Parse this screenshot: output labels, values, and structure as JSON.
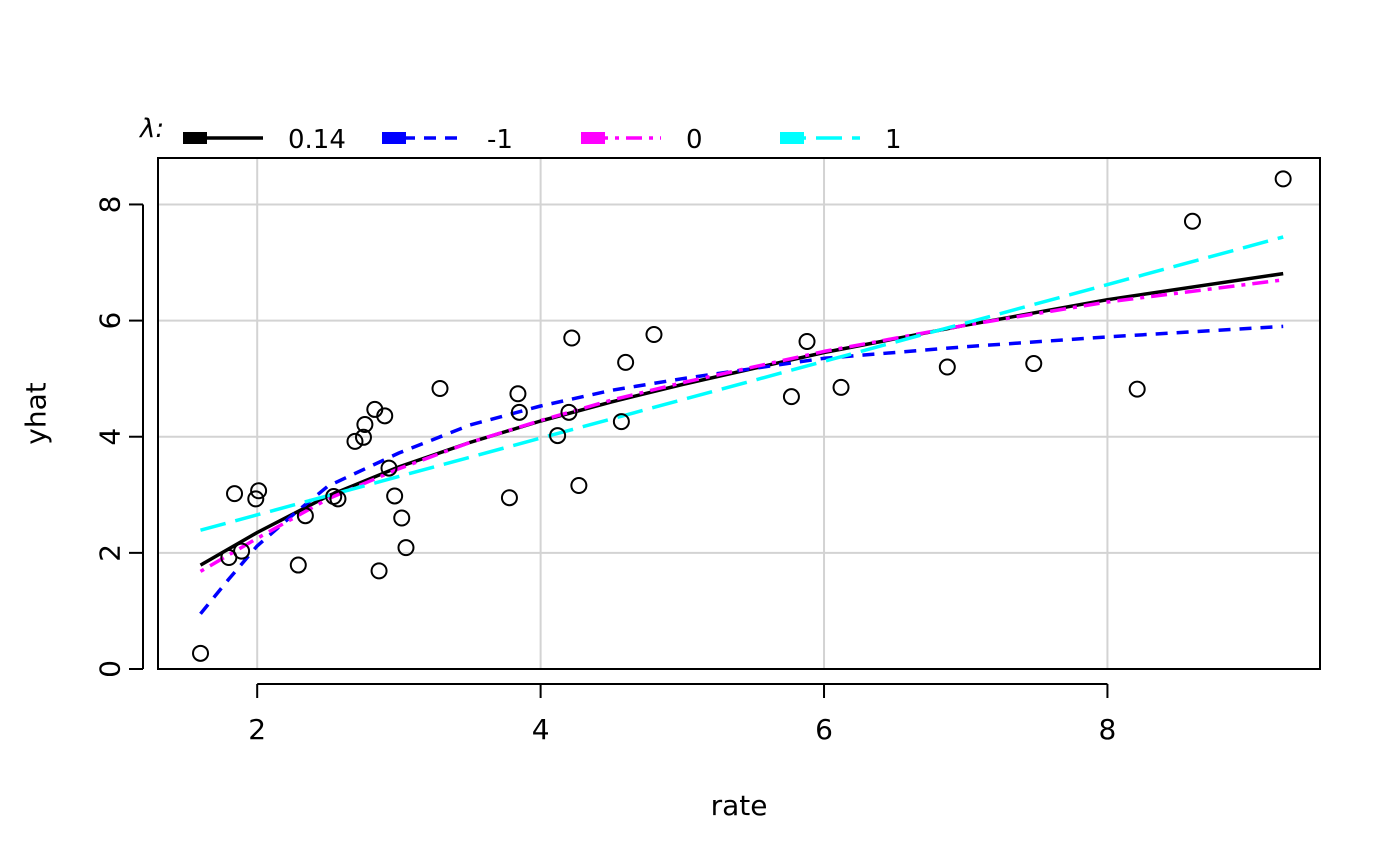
{
  "chart_data": {
    "type": "scatter",
    "title": "",
    "xlabel": "rate",
    "ylabel": "yhat",
    "xlim": [
      1.3,
      9.5
    ],
    "ylim": [
      0,
      8.8
    ],
    "x_ticks": [
      "2",
      "4",
      "6",
      "8"
    ],
    "y_ticks": [
      "0",
      "2",
      "4",
      "6",
      "8"
    ],
    "grid": true,
    "legend": {
      "title": "λ:",
      "placement": "top",
      "entries": [
        "0.14",
        "-1",
        "0",
        "1"
      ]
    },
    "points": [
      {
        "x": 1.6,
        "y": 0.27
      },
      {
        "x": 1.8,
        "y": 1.92
      },
      {
        "x": 1.84,
        "y": 3.02
      },
      {
        "x": 1.89,
        "y": 2.03
      },
      {
        "x": 1.99,
        "y": 2.93
      },
      {
        "x": 2.01,
        "y": 3.07
      },
      {
        "x": 2.29,
        "y": 1.79
      },
      {
        "x": 2.34,
        "y": 2.64
      },
      {
        "x": 2.54,
        "y": 2.97
      },
      {
        "x": 2.57,
        "y": 2.93
      },
      {
        "x": 2.69,
        "y": 3.92
      },
      {
        "x": 2.75,
        "y": 3.99
      },
      {
        "x": 2.76,
        "y": 4.21
      },
      {
        "x": 2.83,
        "y": 4.47
      },
      {
        "x": 2.86,
        "y": 1.69
      },
      {
        "x": 2.9,
        "y": 4.36
      },
      {
        "x": 2.93,
        "y": 3.46
      },
      {
        "x": 2.97,
        "y": 2.98
      },
      {
        "x": 3.02,
        "y": 2.6
      },
      {
        "x": 3.05,
        "y": 2.09
      },
      {
        "x": 3.29,
        "y": 4.83
      },
      {
        "x": 3.78,
        "y": 2.95
      },
      {
        "x": 3.84,
        "y": 4.74
      },
      {
        "x": 3.85,
        "y": 4.42
      },
      {
        "x": 4.12,
        "y": 4.02
      },
      {
        "x": 4.2,
        "y": 4.42
      },
      {
        "x": 4.22,
        "y": 5.7
      },
      {
        "x": 4.27,
        "y": 3.16
      },
      {
        "x": 4.57,
        "y": 4.26
      },
      {
        "x": 4.6,
        "y": 5.28
      },
      {
        "x": 4.8,
        "y": 5.76
      },
      {
        "x": 5.77,
        "y": 4.69
      },
      {
        "x": 5.88,
        "y": 5.64
      },
      {
        "x": 6.12,
        "y": 4.85
      },
      {
        "x": 6.87,
        "y": 5.2
      },
      {
        "x": 7.48,
        "y": 5.26
      },
      {
        "x": 8.21,
        "y": 4.82
      },
      {
        "x": 8.6,
        "y": 7.71
      },
      {
        "x": 9.24,
        "y": 8.44
      }
    ],
    "series": [
      {
        "name": "0.14",
        "color": "#000000",
        "dash": "solid",
        "x": [
          1.6,
          2.0,
          2.5,
          3.0,
          3.5,
          4.0,
          4.5,
          5.0,
          6.0,
          7.0,
          8.0,
          9.24
        ],
        "y": [
          1.79,
          2.35,
          2.98,
          3.48,
          3.9,
          4.27,
          4.6,
          4.9,
          5.45,
          5.92,
          6.36,
          6.81
        ]
      },
      {
        "name": "-1",
        "color": "#0000FF",
        "dash": "dashed",
        "x": [
          1.6,
          1.8,
          2.0,
          2.25,
          2.5,
          3.0,
          3.5,
          4.0,
          4.5,
          5.0,
          6.0,
          7.0,
          8.0,
          9.24
        ],
        "y": [
          0.95,
          1.55,
          2.12,
          2.65,
          3.15,
          3.72,
          4.2,
          4.53,
          4.8,
          5.0,
          5.35,
          5.55,
          5.72,
          5.9
        ]
      },
      {
        "name": "0",
        "color": "#FF00FF",
        "dash": "dotdash",
        "x": [
          1.6,
          2.0,
          2.5,
          3.0,
          3.5,
          4.0,
          4.5,
          5.0,
          6.0,
          7.0,
          8.0,
          9.24
        ],
        "y": [
          1.68,
          2.25,
          2.93,
          3.45,
          3.9,
          4.28,
          4.63,
          4.93,
          5.47,
          5.92,
          6.32,
          6.7
        ]
      },
      {
        "name": "1",
        "color": "#00FFFF",
        "dash": "longdash",
        "x": [
          1.6,
          9.24
        ],
        "y": [
          2.39,
          7.44
        ]
      }
    ]
  }
}
